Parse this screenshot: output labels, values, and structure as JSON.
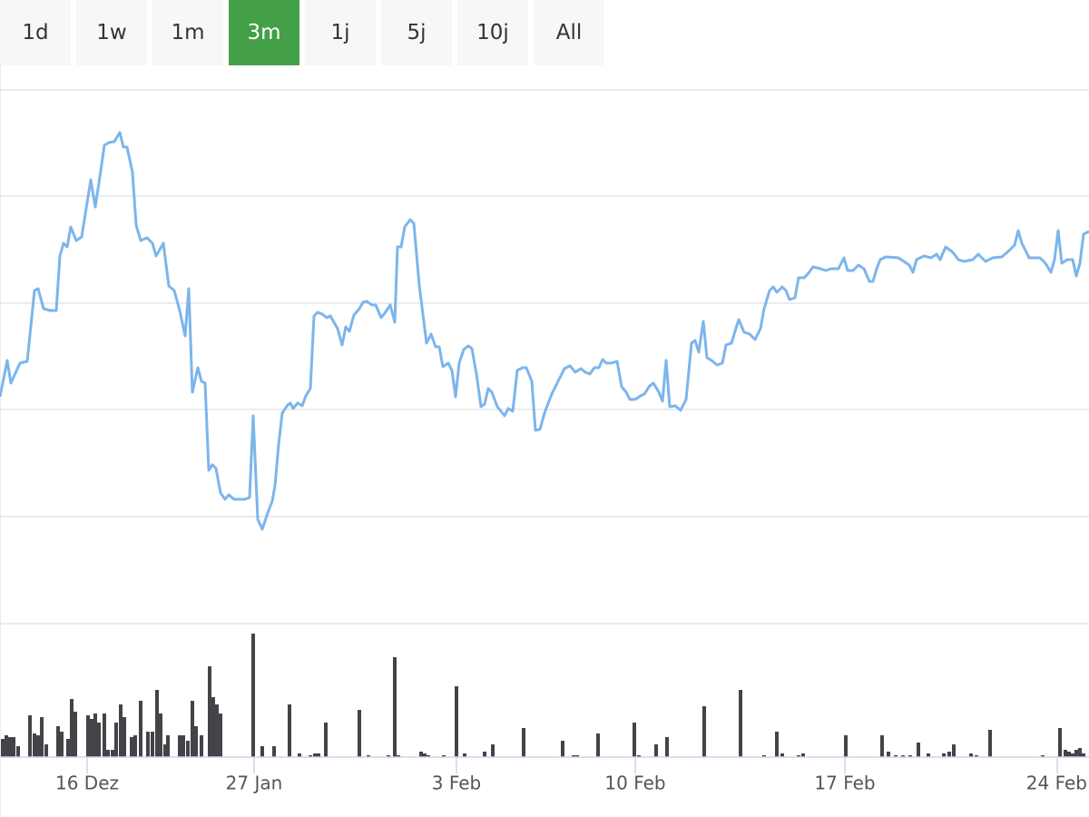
{
  "buttons": [
    "1d",
    "1w",
    "1m",
    "3m",
    "1j",
    "5j",
    "10j",
    "All"
  ],
  "selected": 3,
  "chart_data": [
    {
      "type": "line",
      "color": "#7cb5ec",
      "xlim": [
        0,
        1200
      ],
      "ylim": [
        0,
        588
      ],
      "yticks": [
        0,
        118,
        236,
        353,
        471,
        588
      ],
      "grid": true,
      "x": [
        0,
        8,
        12,
        22,
        30,
        38,
        42,
        48,
        55,
        62,
        66,
        70,
        74,
        78,
        84,
        90,
        100,
        105,
        110,
        115,
        120,
        126,
        132,
        136,
        140,
        146,
        150,
        155,
        162,
        168,
        172,
        180,
        186,
        192,
        198,
        204,
        208,
        212,
        218,
        222,
        226,
        230,
        234,
        238,
        243,
        248,
        252,
        258,
        270,
        275,
        279,
        284,
        289,
        295,
        300,
        303,
        307,
        311,
        317,
        320,
        323,
        328,
        333,
        337,
        342,
        346,
        350,
        355,
        360,
        364,
        372,
        377,
        381,
        385,
        390,
        396,
        400,
        404,
        410,
        414,
        420,
        424,
        430,
        435,
        438,
        442,
        446,
        452,
        456,
        462,
        470,
        475,
        480,
        484,
        488,
        494,
        498,
        502,
        506,
        511,
        516,
        520,
        525,
        530,
        534,
        538,
        542,
        548,
        556,
        560,
        565,
        570,
        576,
        580,
        586,
        590,
        595,
        600,
        608,
        616,
        622,
        628,
        634,
        640,
        645,
        650,
        655,
        660,
        664,
        668,
        674,
        680,
        685,
        690,
        694,
        700,
        706,
        710,
        716,
        720,
        726,
        730,
        734,
        738,
        744,
        750,
        756,
        762,
        766,
        770,
        775,
        779,
        784,
        790,
        796,
        800,
        806,
        814,
        820,
        826,
        832,
        838,
        842,
        848,
        852,
        856,
        862,
        866,
        870,
        876,
        880,
        886,
        890,
        896,
        904,
        910,
        916,
        924,
        930,
        934,
        940,
        946,
        952,
        958,
        962,
        966,
        970,
        976,
        990,
        996,
        1002,
        1006,
        1010,
        1018,
        1026,
        1032,
        1036,
        1042,
        1050,
        1056,
        1062,
        1072,
        1078,
        1086,
        1094,
        1104,
        1112,
        1118,
        1122,
        1126,
        1134,
        1146,
        1152,
        1158,
        1162,
        1166,
        1170,
        1176,
        1182,
        1186,
        1190,
        1194,
        1200
      ],
      "values": [
        250,
        290,
        265,
        287,
        289,
        367,
        369,
        347,
        345,
        345,
        405,
        419,
        415,
        437,
        422,
        426,
        489,
        459,
        492,
        527,
        530,
        531,
        541,
        525,
        525,
        497,
        439,
        422,
        425,
        419,
        405,
        419,
        372,
        367,
        345,
        317,
        369,
        255,
        282,
        267,
        265,
        169,
        175,
        171,
        144,
        137,
        142,
        137,
        137,
        139,
        229,
        115,
        104,
        122,
        135,
        152,
        197,
        232,
        241,
        243,
        237,
        243,
        240,
        251,
        259,
        339,
        343,
        341,
        337,
        339,
        325,
        307,
        327,
        322,
        340,
        347,
        354,
        355,
        351,
        351,
        337,
        342,
        351,
        332,
        415,
        415,
        437,
        445,
        441,
        373,
        309,
        319,
        305,
        305,
        283,
        287,
        279,
        250,
        287,
        302,
        306,
        303,
        275,
        239,
        242,
        259,
        255,
        239,
        229,
        237,
        234,
        279,
        282,
        282,
        267,
        213,
        214,
        232,
        253,
        269,
        281,
        284,
        277,
        281,
        277,
        275,
        282,
        282,
        291,
        287,
        287,
        289,
        261,
        255,
        247,
        247,
        251,
        253,
        262,
        265,
        255,
        245,
        290,
        239,
        240,
        235,
        247,
        309,
        312,
        299,
        333,
        293,
        290,
        285,
        287,
        307,
        309,
        335,
        321,
        319,
        313,
        325,
        347,
        367,
        371,
        365,
        371,
        367,
        357,
        359,
        381,
        381,
        385,
        393,
        391,
        389,
        391,
        391,
        403,
        389,
        389,
        395,
        391,
        377,
        377,
        391,
        401,
        404,
        403,
        399,
        395,
        387,
        401,
        405,
        403,
        407,
        401,
        415,
        409,
        401,
        399,
        401,
        407,
        399,
        403,
        404,
        411,
        417,
        433,
        419,
        403,
        403,
        397,
        387,
        401,
        433,
        397,
        401,
        401,
        383,
        397,
        429,
        432
      ]
    },
    {
      "type": "bar",
      "color": "#434348",
      "xlim": [
        0,
        1200
      ],
      "ylim": [
        0,
        147
      ],
      "xticks": [
        {
          "value": 96,
          "label": "16 Dez"
        },
        {
          "value": 280,
          "label": "27 Jan"
        },
        {
          "value": 503,
          "label": "3 Feb"
        },
        {
          "value": 700,
          "label": "10 Feb"
        },
        {
          "value": 931,
          "label": "17 Feb"
        },
        {
          "value": 1165,
          "label": "24 Feb"
        }
      ],
      "x": [
        3,
        7,
        11,
        15,
        20,
        33,
        38,
        42,
        46,
        51,
        64,
        68,
        75,
        79,
        83,
        97,
        101,
        105,
        109,
        115,
        119,
        124,
        128,
        133,
        137,
        145,
        149,
        155,
        163,
        168,
        173,
        177,
        182,
        185,
        198,
        202,
        207,
        212,
        216,
        222,
        231,
        235,
        239,
        243,
        279,
        289,
        302,
        319,
        330,
        342,
        347,
        351,
        359,
        396,
        406,
        428,
        435,
        439,
        464,
        468,
        472,
        489,
        503,
        512,
        534,
        543,
        577,
        620,
        632,
        636,
        659,
        699,
        704,
        723,
        735,
        776,
        816,
        842,
        856,
        862,
        880,
        885,
        932,
        972,
        979,
        987,
        995,
        1003,
        1012,
        1023,
        1040,
        1046,
        1051,
        1070,
        1076,
        1091,
        1149,
        1168,
        1174,
        1178,
        1182,
        1186,
        1190,
        1194
      ],
      "values": [
        20,
        24,
        22,
        22,
        12,
        46,
        26,
        24,
        44,
        14,
        34,
        28,
        20,
        64,
        50,
        46,
        42,
        48,
        38,
        48,
        8,
        8,
        38,
        58,
        44,
        22,
        24,
        62,
        28,
        28,
        74,
        48,
        14,
        24,
        24,
        24,
        18,
        62,
        34,
        24,
        100,
        66,
        58,
        48,
        136,
        12,
        12,
        58,
        4,
        2,
        4,
        4,
        38,
        52,
        2,
        2,
        110,
        2,
        6,
        4,
        2,
        2,
        78,
        4,
        6,
        14,
        32,
        18,
        2,
        2,
        26,
        38,
        2,
        14,
        22,
        56,
        74,
        2,
        28,
        4,
        2,
        4,
        24,
        24,
        6,
        2,
        2,
        2,
        16,
        4,
        4,
        6,
        14,
        4,
        2,
        30,
        2,
        32,
        8,
        6,
        4,
        8,
        10,
        4
      ]
    }
  ]
}
